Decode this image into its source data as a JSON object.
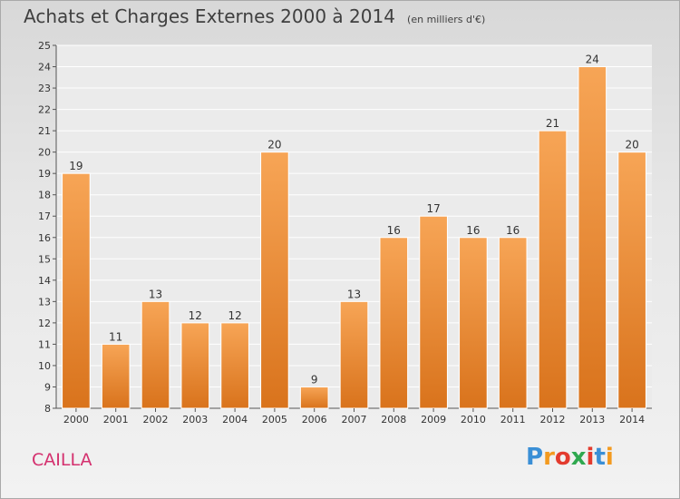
{
  "header": {
    "title": "Achats et Charges Externes 2000 à 2014",
    "unit": "(en milliers d'€)"
  },
  "commune": "CAILLA",
  "logo": {
    "text": "Proxiti",
    "letters": [
      "P",
      "r",
      "o",
      "x",
      "i",
      "t",
      "i"
    ],
    "colors": [
      "#3a8fd6",
      "#f39a1f",
      "#e33b2e",
      "#2fa84f",
      "#e33b2e",
      "#3a8fd6",
      "#f39a1f"
    ]
  },
  "colors": {
    "bar_top": "#f7a556",
    "bar_bottom": "#d9731c",
    "accent_commune": "#d4306e"
  },
  "chart_data": {
    "type": "bar",
    "title": "Achats et Charges Externes 2000 à 2014",
    "subtitle": "(en milliers d'€)",
    "xlabel": "",
    "ylabel": "",
    "categories": [
      "2000",
      "2001",
      "2002",
      "2003",
      "2004",
      "2005",
      "2006",
      "2007",
      "2008",
      "2009",
      "2010",
      "2011",
      "2012",
      "2013",
      "2014"
    ],
    "values": [
      19,
      11,
      13,
      12,
      12,
      20,
      9,
      13,
      16,
      17,
      16,
      16,
      21,
      24,
      20
    ],
    "ylim": [
      8,
      25
    ],
    "yticks": [
      8,
      9,
      10,
      11,
      12,
      13,
      14,
      15,
      16,
      17,
      18,
      19,
      20,
      21,
      22,
      23,
      24,
      25
    ],
    "grid": true,
    "legend": "none"
  }
}
